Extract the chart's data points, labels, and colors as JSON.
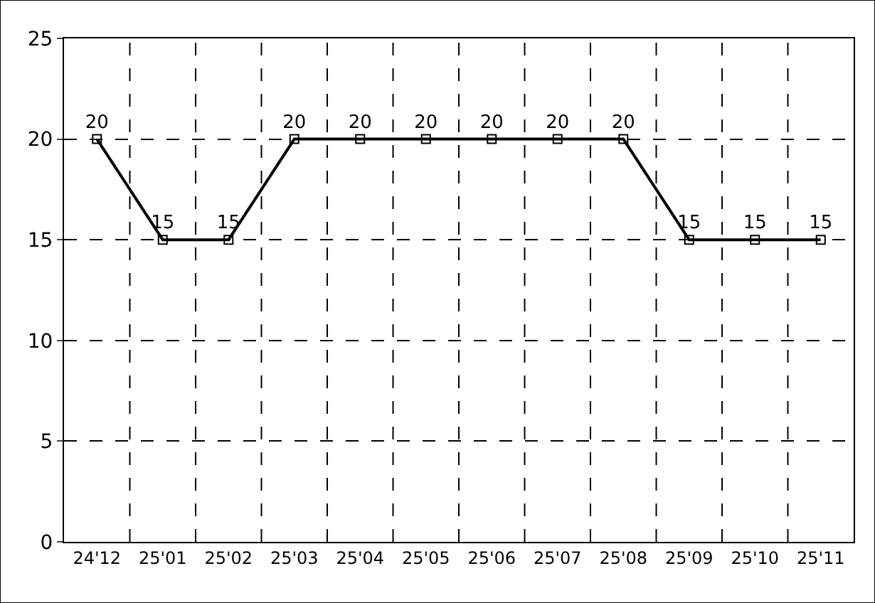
{
  "chart_data": {
    "type": "line",
    "categories": [
      "24'12",
      "25'01",
      "25'02",
      "25'03",
      "25'04",
      "25'05",
      "25'06",
      "25'07",
      "25'08",
      "25'09",
      "25'10",
      "25'11"
    ],
    "series": [
      {
        "color": "#000000",
        "values": [
          20,
          15,
          15,
          20,
          20,
          20,
          20,
          20,
          20,
          15,
          15,
          15
        ]
      }
    ],
    "ylim": [
      0,
      25
    ],
    "yticks": [
      0,
      5,
      10,
      15,
      20,
      25
    ],
    "grid": true,
    "marker": "square",
    "line_style": "solid",
    "data_labels": true,
    "legend": false
  }
}
